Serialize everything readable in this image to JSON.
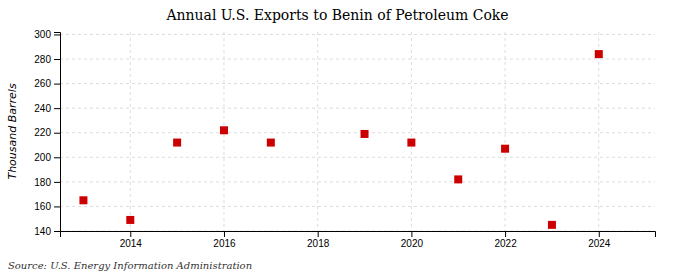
{
  "chart_data": {
    "type": "scatter",
    "title": "Annual U.S. Exports to Benin of Petroleum Coke",
    "ylabel": "Thousand Barrels",
    "source": "Source: U.S. Energy Information Administration",
    "x": [
      2013,
      2014,
      2015,
      2016,
      2017,
      2019,
      2020,
      2021,
      2022,
      2023,
      2024
    ],
    "values": [
      165,
      149,
      212,
      222,
      212,
      219,
      212,
      182,
      207,
      145,
      284
    ],
    "color": "#cc0000",
    "marker": "square",
    "xlim": [
      2012.5,
      2025.2
    ],
    "ylim": [
      140,
      302
    ],
    "xticks": [
      2014,
      2016,
      2018,
      2020,
      2022,
      2024
    ],
    "yticks": [
      140,
      160,
      180,
      200,
      220,
      240,
      260,
      280,
      300
    ],
    "grid": true
  }
}
